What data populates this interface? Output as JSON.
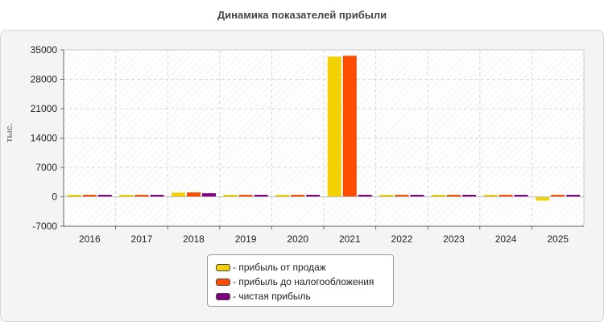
{
  "title": "Динамика показателей прибыли",
  "chart_data": {
    "type": "bar",
    "ylabel": "тыс.",
    "ylim": [
      -7000,
      35000
    ],
    "yticks": [
      35000,
      28000,
      21000,
      14000,
      7000,
      0,
      -7000
    ],
    "categories": [
      "2016",
      "2017",
      "2018",
      "2019",
      "2020",
      "2021",
      "2022",
      "2023",
      "2024",
      "2025"
    ],
    "series": [
      {
        "name": "- прибыль от продаж",
        "color": "#f5d000",
        "values": [
          100,
          80,
          1000,
          150,
          200,
          33400,
          150,
          200,
          100,
          -900
        ]
      },
      {
        "name": "- прибыль до налогообложения",
        "color": "#ff4d00",
        "values": [
          120,
          100,
          1050,
          170,
          210,
          33600,
          170,
          220,
          120,
          150
        ]
      },
      {
        "name": "- чистая прибыль",
        "color": "#800080",
        "values": [
          100,
          90,
          850,
          130,
          180,
          400,
          130,
          170,
          100,
          110
        ]
      }
    ],
    "grid": true,
    "legend_position": "bottom"
  }
}
